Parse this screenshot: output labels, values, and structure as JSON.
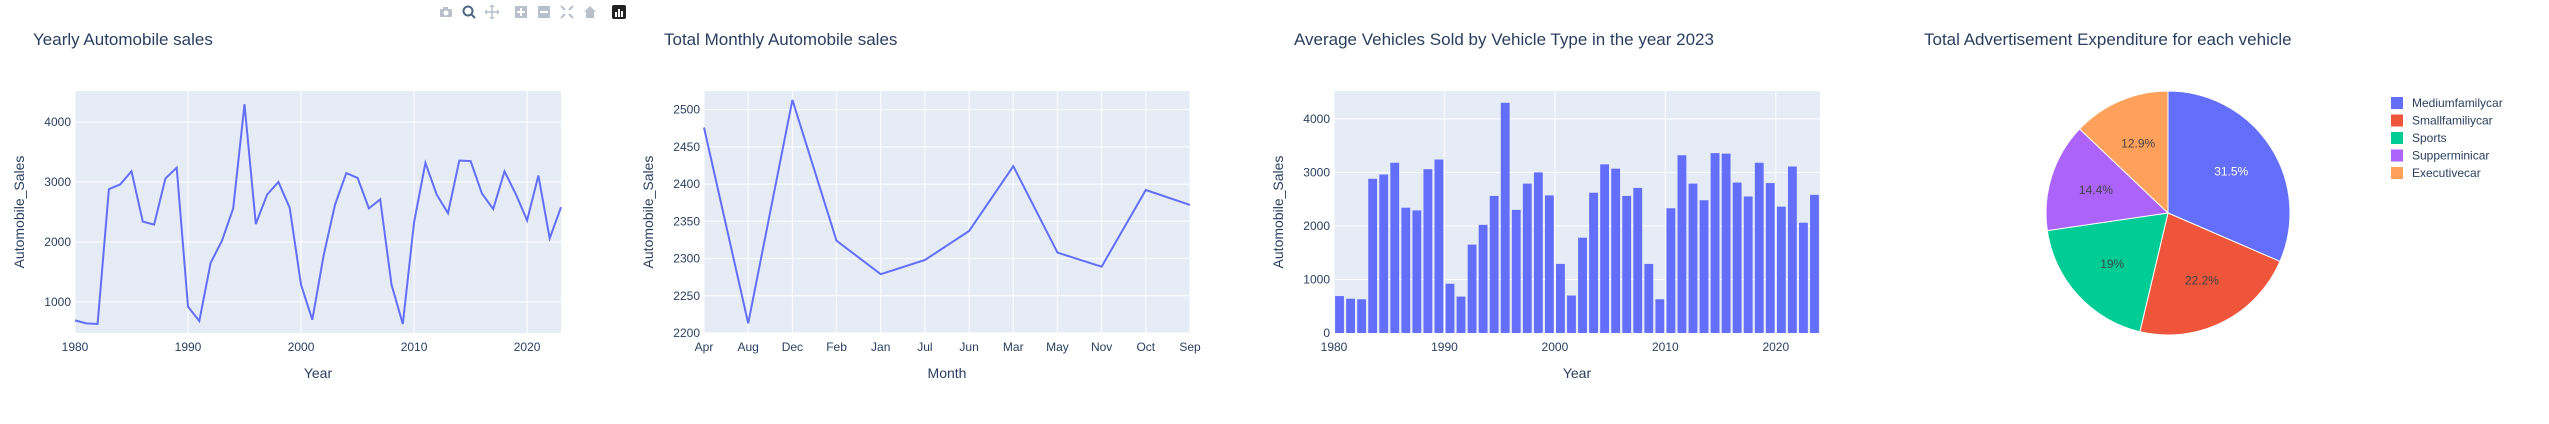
{
  "modebar": {
    "icons": [
      "camera-icon",
      "zoom-icon",
      "pan-icon",
      "zoom-in-icon",
      "zoom-out-icon",
      "autoscale-icon",
      "home-icon",
      "plotly-logo-icon"
    ]
  },
  "colors": {
    "plot_bg": "#e5ecf6",
    "grid": "#ffffff",
    "line": "#636efa",
    "text": "#2a3f5f",
    "pie": [
      "#636efa",
      "#ef553b",
      "#00cc96",
      "#ab63fa",
      "#ffa15a"
    ]
  },
  "chart_data": [
    {
      "type": "line",
      "title": "Yearly Automobile sales",
      "xlabel": "Year",
      "ylabel": "Automobile_Sales",
      "xlim": [
        1980,
        2023
      ],
      "ylim": [
        480,
        4520
      ],
      "xticks": [
        1980,
        1990,
        2000,
        2010,
        2020
      ],
      "yticks": [
        1000,
        2000,
        3000,
        4000
      ],
      "grid": true,
      "x": [
        1980,
        1981,
        1982,
        1983,
        1984,
        1985,
        1986,
        1987,
        1988,
        1989,
        1990,
        1991,
        1992,
        1993,
        1994,
        1995,
        1996,
        1997,
        1998,
        1999,
        2000,
        2001,
        2002,
        2003,
        2004,
        2005,
        2006,
        2007,
        2008,
        2009,
        2010,
        2011,
        2012,
        2013,
        2014,
        2015,
        2016,
        2017,
        2018,
        2019,
        2020,
        2021,
        2022,
        2023
      ],
      "y": [
        690,
        640,
        630,
        2880,
        2960,
        3180,
        2340,
        2290,
        3060,
        3240,
        920,
        680,
        1650,
        2020,
        2560,
        4300,
        2300,
        2790,
        3000,
        2570,
        1290,
        700,
        1780,
        2620,
        3150,
        3070,
        2560,
        2710,
        1290,
        630,
        2330,
        3320,
        2790,
        2480,
        3360,
        3350,
        2810,
        2550,
        3180,
        2800,
        2360,
        3110,
        2060,
        2580
      ]
    },
    {
      "type": "line",
      "title": "Total Monthly Automobile sales",
      "xlabel": "Month",
      "ylabel": "Automobile_Sales",
      "categories": [
        "Apr",
        "Aug",
        "Dec",
        "Feb",
        "Jan",
        "Jul",
        "Jun",
        "Mar",
        "May",
        "Nov",
        "Oct",
        "Sep"
      ],
      "values": [
        2476,
        2213,
        2513,
        2324,
        2279,
        2298,
        2337,
        2424,
        2308,
        2289,
        2392,
        2372
      ],
      "ylim": [
        2200,
        2525
      ],
      "yticks": [
        2200,
        2250,
        2300,
        2350,
        2400,
        2450,
        2500
      ],
      "grid": true
    },
    {
      "type": "bar",
      "title": "Average Vehicles Sold by Vehicle Type in the year 2023",
      "xlabel": "Year",
      "ylabel": "Automobile_Sales",
      "xlim": [
        1980,
        2023
      ],
      "ylim": [
        0,
        4520
      ],
      "xticks": [
        1980,
        1990,
        2000,
        2010,
        2020
      ],
      "yticks": [
        0,
        1000,
        2000,
        3000,
        4000
      ],
      "grid": true,
      "x": [
        1980,
        1981,
        1982,
        1983,
        1984,
        1985,
        1986,
        1987,
        1988,
        1989,
        1990,
        1991,
        1992,
        1993,
        1994,
        1995,
        1996,
        1997,
        1998,
        1999,
        2000,
        2001,
        2002,
        2003,
        2004,
        2005,
        2006,
        2007,
        2008,
        2009,
        2010,
        2011,
        2012,
        2013,
        2014,
        2015,
        2016,
        2017,
        2018,
        2019,
        2020,
        2021,
        2022,
        2023
      ],
      "values": [
        690,
        640,
        630,
        2880,
        2960,
        3180,
        2340,
        2290,
        3060,
        3240,
        920,
        680,
        1650,
        2020,
        2560,
        4300,
        2300,
        2790,
        3000,
        2570,
        1290,
        700,
        1780,
        2620,
        3150,
        3070,
        2560,
        2710,
        1290,
        630,
        2330,
        3320,
        2790,
        2480,
        3360,
        3350,
        2810,
        2550,
        3180,
        2800,
        2360,
        3110,
        2060,
        2580
      ]
    },
    {
      "type": "pie",
      "title": "Total Advertisement Expenditure for each vehicle",
      "labels": [
        "Mediumfamilycar",
        "Smallfamiliycar",
        "Sports",
        "Supperminicar",
        "Executivecar"
      ],
      "values": [
        31.5,
        22.2,
        19,
        14.4,
        12.9
      ],
      "slice_labels": [
        "31.5%",
        "22.2%",
        "19%",
        "14.4%",
        "12.9%"
      ],
      "legend": "right"
    }
  ]
}
